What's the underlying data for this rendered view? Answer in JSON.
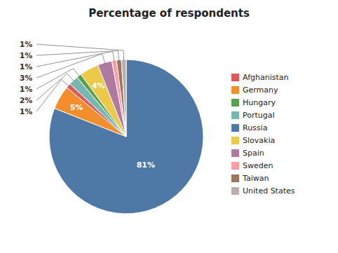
{
  "chart_data": {
    "type": "pie",
    "title": "Percentage of respondents",
    "categories": [
      "Russia",
      "Germany",
      "Afghanistan",
      "Portugal",
      "Hungary",
      "Slovakia",
      "Spain",
      "Sweden",
      "Taiwan",
      "United States"
    ],
    "values": [
      81,
      5,
      1,
      2,
      1,
      4,
      3,
      1,
      1,
      1
    ],
    "value_labels": [
      "81%",
      "5%",
      "1%",
      "2%",
      "1%",
      "4%",
      "3%",
      "1%",
      "1%",
      "1%"
    ],
    "data_labels": true,
    "legend": "right"
  }
}
